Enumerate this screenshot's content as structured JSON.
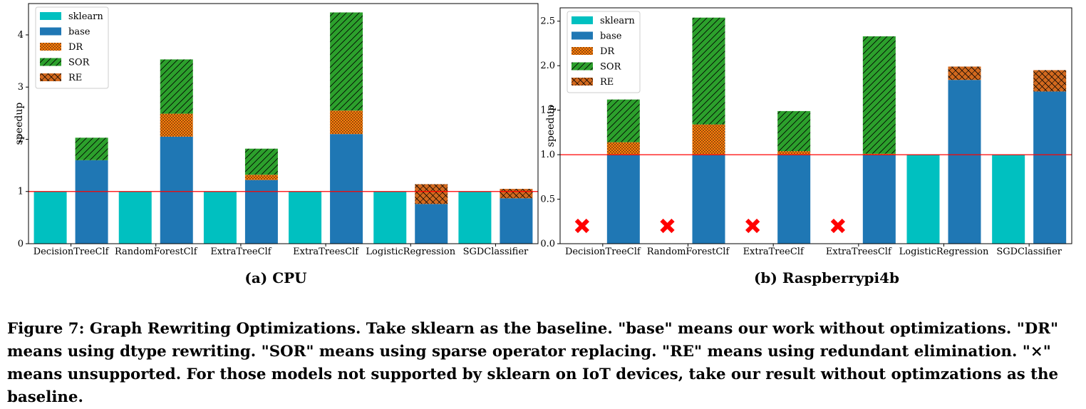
{
  "colors": {
    "sklearn": "#00c0c0",
    "base": "#1f77b4",
    "DR": "#ff7f0e",
    "SOR": "#2ca02c",
    "RE": "#d2691e",
    "baseline_line": "#ff0000",
    "unsupported_marker": "#ff0000"
  },
  "patterns": {
    "DR": "dots",
    "SOR": "forward-diagonal",
    "RE": "cross-hatch"
  },
  "caption": {
    "text": "Figure 7: Graph Rewriting Optimizations. Take sklearn as the baseline. \"base\" means our work without optimizations. \"DR\" means using dtype rewriting. \"SOR\" means using sparse operator replacing. \"RE\" means using redundant elimination. \"×\" means unsupported. For those models not supported by sklearn on IoT devices, take our result without optimzations as the baseline."
  },
  "chart_data": [
    {
      "type": "bar",
      "title": "(a) CPU",
      "xlabel": "",
      "ylabel": "speedup",
      "ylim": [
        0,
        4.6
      ],
      "yticks": [
        0,
        1,
        2,
        3,
        4
      ],
      "ytick_labels": [
        "0",
        "1",
        "2",
        "3",
        "4"
      ],
      "baseline": 1,
      "legend": {
        "placement": "top-left",
        "entries": [
          "sklearn",
          "base",
          "DR",
          "SOR",
          "RE"
        ]
      },
      "categories": [
        "DecisionTreeClf",
        "RandomForestClf",
        "ExtraTreeClf",
        "ExtraTreesClf",
        "LogisticRegression",
        "SGDClassifier"
      ],
      "sklearn": [
        1,
        1,
        1,
        1,
        1,
        1
      ],
      "unsupported": [
        false,
        false,
        false,
        false,
        false,
        false
      ],
      "stacked_series": [
        {
          "name": "base",
          "values": [
            1.6,
            2.05,
            1.22,
            2.1,
            0.76,
            0.87
          ]
        },
        {
          "name": "DR",
          "values": [
            0,
            0.44,
            0.1,
            0.45,
            0,
            0
          ]
        },
        {
          "name": "SOR",
          "values": [
            0.43,
            1.04,
            0.5,
            1.88,
            0,
            0
          ]
        },
        {
          "name": "RE",
          "values": [
            0,
            0,
            0,
            0,
            0.38,
            0.18
          ]
        }
      ]
    },
    {
      "type": "bar",
      "title": "(b) Raspberrypi4b",
      "xlabel": "",
      "ylabel": "speedup",
      "ylim": [
        0,
        2.65
      ],
      "yticks": [
        0,
        0.5,
        1.0,
        1.5,
        2.0,
        2.5
      ],
      "ytick_labels": [
        "0.0",
        "0.5",
        "1.0",
        "1.5",
        "2.0",
        "2.5"
      ],
      "baseline": 1,
      "legend": {
        "placement": "top-left",
        "entries": [
          "sklearn",
          "base",
          "DR",
          "SOR",
          "RE"
        ]
      },
      "categories": [
        "DecisionTreeClf",
        "RandomForestClf",
        "ExtraTreeClf",
        "ExtraTreesClf",
        "LogisticRegression",
        "SGDClassifier"
      ],
      "sklearn": [
        null,
        null,
        null,
        null,
        1,
        1
      ],
      "unsupported": [
        true,
        true,
        true,
        true,
        false,
        false
      ],
      "stacked_series": [
        {
          "name": "base",
          "values": [
            1.0,
            1.0,
            1.0,
            1.0,
            1.84,
            1.71
          ]
        },
        {
          "name": "DR",
          "values": [
            0.14,
            0.34,
            0.04,
            0.01,
            0,
            0
          ]
        },
        {
          "name": "SOR",
          "values": [
            0.48,
            1.2,
            0.45,
            1.32,
            0,
            0
          ]
        },
        {
          "name": "RE",
          "values": [
            0,
            0,
            0,
            0,
            0.15,
            0.24
          ]
        }
      ]
    }
  ]
}
